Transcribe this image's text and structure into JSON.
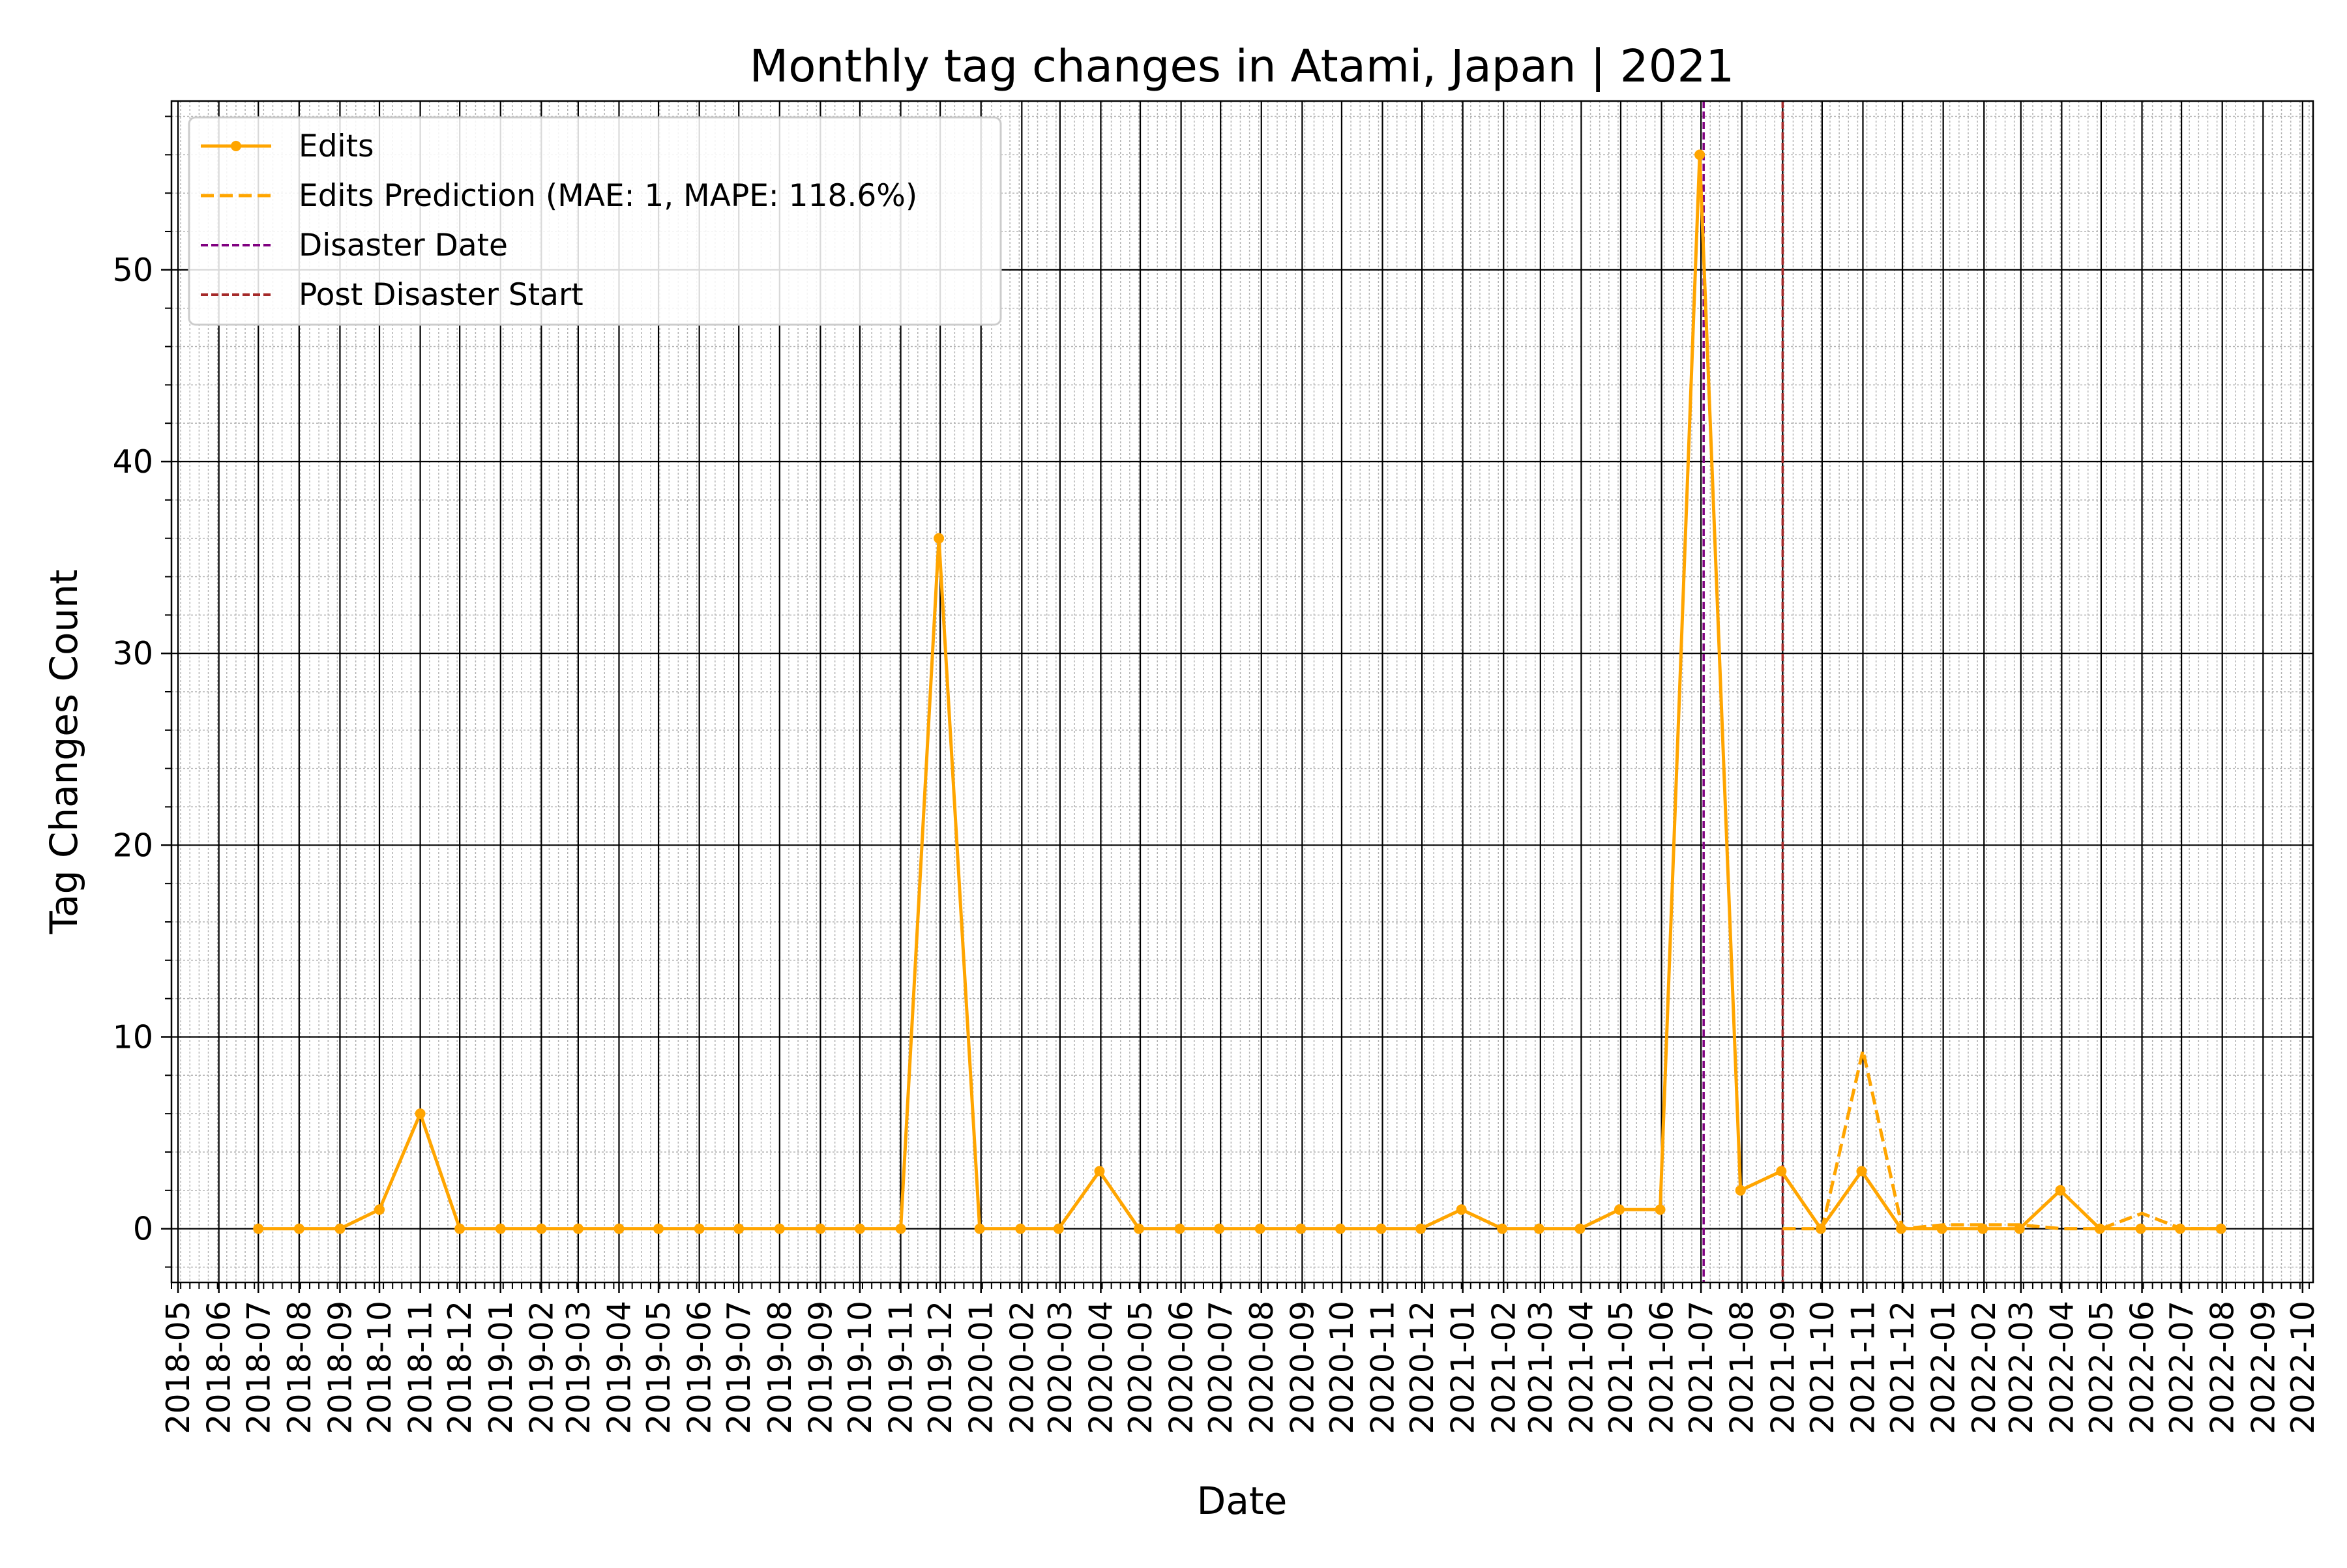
{
  "chart_data": {
    "type": "line",
    "title": "Monthly tag changes in Atami, Japan | 2021",
    "xlabel": "Date",
    "ylabel": "Tag Changes Count",
    "xlim": [
      "2018-05",
      "2022-10"
    ],
    "ylim": [
      -2.8,
      58.8
    ],
    "grid": true,
    "legend_position": "top-left",
    "x_tick_labels": [
      "2018-05",
      "2018-06",
      "2018-07",
      "2018-08",
      "2018-09",
      "2018-10",
      "2018-11",
      "2018-12",
      "2019-01",
      "2019-02",
      "2019-03",
      "2019-04",
      "2019-05",
      "2019-06",
      "2019-07",
      "2019-08",
      "2019-09",
      "2019-10",
      "2019-11",
      "2019-12",
      "2020-01",
      "2020-02",
      "2020-03",
      "2020-04",
      "2020-05",
      "2020-06",
      "2020-07",
      "2020-08",
      "2020-09",
      "2020-10",
      "2020-11",
      "2020-12",
      "2021-01",
      "2021-02",
      "2021-03",
      "2021-04",
      "2021-05",
      "2021-06",
      "2021-07",
      "2021-08",
      "2021-09",
      "2021-10",
      "2021-11",
      "2021-12",
      "2022-01",
      "2022-02",
      "2022-03",
      "2022-04",
      "2022-05",
      "2022-06",
      "2022-07",
      "2022-08",
      "2022-09",
      "2022-10"
    ],
    "y_ticks": [
      0,
      10,
      20,
      30,
      40,
      50
    ],
    "series": [
      {
        "name": "Edits",
        "color": "#ffa500",
        "style": "solid-markers",
        "x": [
          "2018-07-01",
          "2018-08-01",
          "2018-09-01",
          "2018-10-01",
          "2018-11-01",
          "2018-12-01",
          "2019-01-01",
          "2019-02-01",
          "2019-03-01",
          "2019-04-01",
          "2019-05-01",
          "2019-06-01",
          "2019-07-01",
          "2019-08-01",
          "2019-09-01",
          "2019-10-01",
          "2019-11-01",
          "2019-11-30",
          "2019-12-31",
          "2020-01-31",
          "2020-02-29",
          "2020-03-31",
          "2020-04-30",
          "2020-05-31",
          "2020-06-30",
          "2020-07-31",
          "2020-08-31",
          "2020-09-30",
          "2020-10-31",
          "2020-11-30",
          "2020-12-31",
          "2021-01-31",
          "2021-02-28",
          "2021-03-31",
          "2021-04-30",
          "2021-05-31",
          "2021-06-30",
          "2021-07-31",
          "2021-08-31",
          "2021-09-30",
          "2021-10-31",
          "2021-11-30",
          "2021-12-31",
          "2022-01-31",
          "2022-02-28",
          "2022-03-31",
          "2022-04-30",
          "2022-05-31",
          "2022-06-30",
          "2022-07-31"
        ],
        "values": [
          0,
          0,
          0,
          1,
          6,
          0,
          0,
          0,
          0,
          0,
          0,
          0,
          0,
          0,
          0,
          0,
          0,
          36,
          0,
          0,
          0,
          3,
          0,
          0,
          0,
          0,
          0,
          0,
          0,
          0,
          1,
          0,
          0,
          0,
          1,
          1,
          56,
          2,
          3,
          0,
          3,
          0,
          0,
          0,
          0,
          2,
          0,
          0,
          0,
          0
        ]
      },
      {
        "name": "Edits Prediction (MAE: 1, MAPE: 118.6%)",
        "color": "#ffa500",
        "style": "dashed",
        "x": [
          "2021-09-01",
          "2021-10-01",
          "2021-11-01",
          "2021-12-01",
          "2022-01-01",
          "2022-02-01",
          "2022-03-01",
          "2022-04-01",
          "2022-05-01",
          "2022-06-01",
          "2022-07-01",
          "2022-08-01"
        ],
        "values": [
          0,
          0,
          9.3,
          0,
          0.2,
          0.2,
          0.2,
          0,
          0,
          0.8,
          0,
          0
        ]
      }
    ],
    "vlines": [
      {
        "name": "Disaster Date",
        "x": "2021-07-03",
        "color": "#800080",
        "style": "dashed"
      },
      {
        "name": "Post Disaster Start",
        "x": "2021-09-01",
        "color": "#a52a2a",
        "style": "dashed"
      }
    ]
  }
}
